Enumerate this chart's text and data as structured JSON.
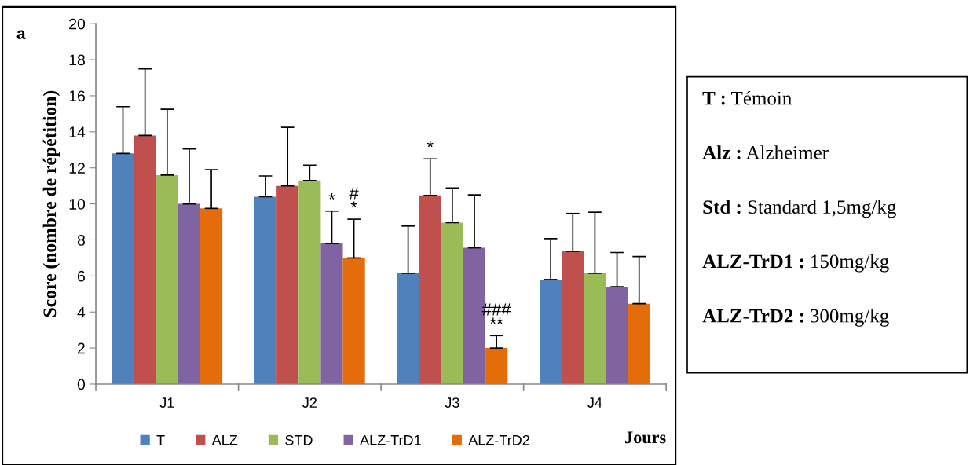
{
  "chart_data": {
    "type": "bar",
    "xlabel": "Jours",
    "ylabel": "Score (nombre de répétition)",
    "categories": [
      "J1",
      "J2",
      "J3",
      "J4"
    ],
    "series": [
      {
        "name": "T",
        "color": "#4f81bd",
        "values": [
          12.8,
          10.4,
          6.15,
          5.8
        ],
        "errors": [
          [
            12.8,
            15.4
          ],
          [
            10.4,
            11.55
          ],
          [
            6.15,
            8.77
          ],
          [
            5.8,
            8.07
          ]
        ]
      },
      {
        "name": "ALZ",
        "color": "#c0504d",
        "values": [
          13.8,
          11.0,
          10.47,
          7.37
        ],
        "errors": [
          [
            13.8,
            17.5
          ],
          [
            11.0,
            14.25
          ],
          [
            10.47,
            12.5
          ],
          [
            7.37,
            9.47
          ]
        ]
      },
      {
        "name": "STD",
        "color": "#9bbb59",
        "values": [
          11.6,
          11.3,
          8.96,
          6.15
        ],
        "errors": [
          [
            11.6,
            15.25
          ],
          [
            11.3,
            12.15
          ],
          [
            8.96,
            10.88
          ],
          [
            6.15,
            9.54
          ]
        ]
      },
      {
        "name": "ALZ-TrD1",
        "color": "#8064a2",
        "values": [
          10.0,
          7.8,
          7.56,
          5.4
        ],
        "errors": [
          [
            10.0,
            13.05
          ],
          [
            7.8,
            9.6
          ],
          [
            7.56,
            10.5
          ],
          [
            5.4,
            7.3
          ]
        ]
      },
      {
        "name": "ALZ-TrD2",
        "color": "#e46c0a",
        "values": [
          9.75,
          7.0,
          2.0,
          4.46
        ],
        "errors": [
          [
            9.75,
            11.9
          ],
          [
            7.0,
            9.15
          ],
          [
            2.0,
            2.69
          ],
          [
            4.46,
            7.08
          ]
        ]
      }
    ],
    "ylim": [
      0,
      20
    ],
    "yticks": [
      0,
      2,
      4,
      6,
      8,
      10,
      12,
      14,
      16,
      18,
      20
    ],
    "grid": false,
    "legend": "bottom",
    "annotations": [
      "a",
      "*",
      "#\n*",
      "*",
      "###\n**",
      "T : Témoin",
      "Alz : Alzheimer",
      "Std : Standard 1,5mg/kg",
      "ALZ-TrD1 : 150mg/kg",
      "ALZ-TrD2 : 300mg/kg"
    ]
  }
}
